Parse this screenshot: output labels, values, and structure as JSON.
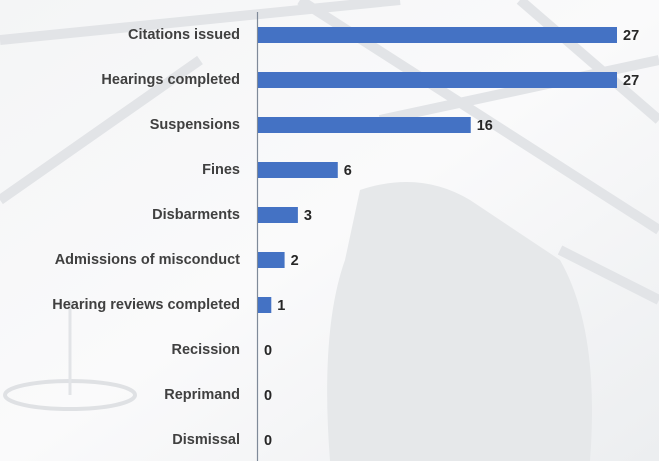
{
  "chart_data": {
    "type": "bar",
    "orientation": "horizontal",
    "categories": [
      "Citations issued",
      "Hearings completed",
      "Suspensions",
      "Fines",
      "Disbarments",
      "Admissions of misconduct",
      "Hearing reviews completed",
      "Recission",
      "Reprimand",
      "Dismissal"
    ],
    "values": [
      27,
      27,
      16,
      6,
      3,
      2,
      1,
      0,
      0,
      0
    ],
    "color": "#4472c4"
  }
}
